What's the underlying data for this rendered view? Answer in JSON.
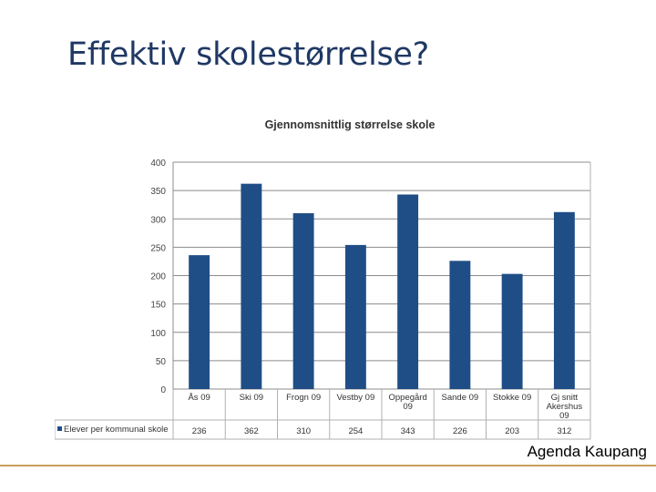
{
  "slide": {
    "title": "Effektiv skolestørrelse?",
    "footer": "Agenda Kaupang"
  },
  "colors": {
    "bar": "#1f4e86",
    "title": "#1f3864",
    "footer_line": "#c8a15e",
    "grid": "#8c8c8c"
  },
  "chart_data": {
    "type": "bar",
    "title": "Gjennomsnittlig størrelse skole",
    "categories": [
      [
        "Ås 09"
      ],
      [
        "Ski 09"
      ],
      [
        "Frogn 09"
      ],
      [
        "Vestby 09"
      ],
      [
        "Oppegård",
        "09"
      ],
      [
        "Sande 09"
      ],
      [
        "Stokke 09"
      ],
      [
        "Gj snitt",
        "Akershus",
        "09"
      ]
    ],
    "series": [
      {
        "name": "Elever per kommunal skole",
        "values": [
          236,
          362,
          310,
          254,
          343,
          226,
          203,
          312
        ]
      }
    ],
    "ylim": [
      0,
      400
    ],
    "yticks": [
      0,
      50,
      100,
      150,
      200,
      250,
      300,
      350,
      400
    ],
    "value_labels": [
      "236",
      "362",
      "310",
      "254",
      "343",
      "226",
      "203",
      "312"
    ],
    "grid": true,
    "legend": "data table below chart"
  }
}
